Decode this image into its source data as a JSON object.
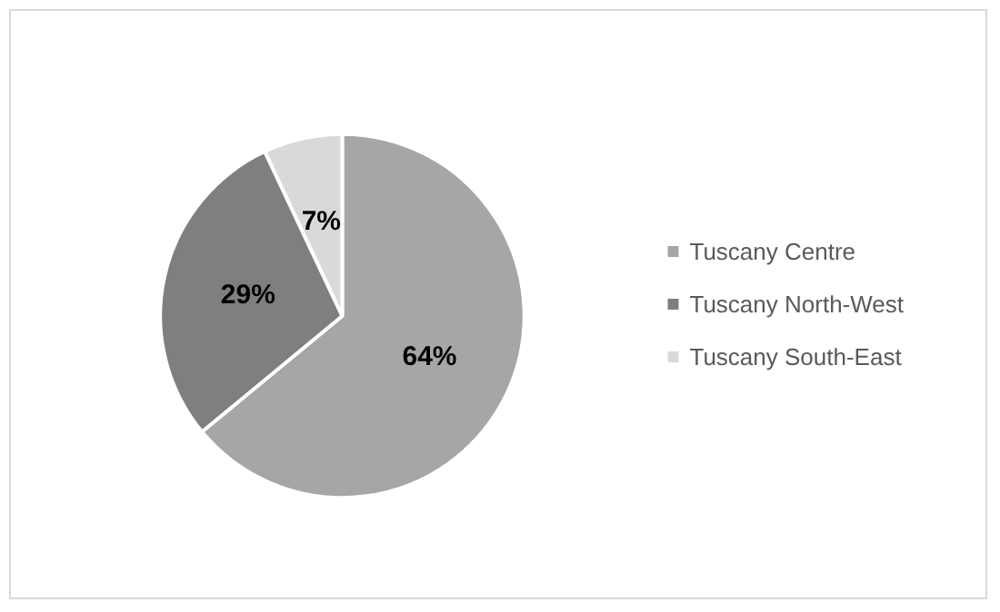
{
  "chart_data": {
    "type": "pie",
    "categories": [
      "Tuscany Centre",
      "Tuscany North-West",
      "Tuscany South-East"
    ],
    "values": [
      64,
      29,
      7
    ],
    "colors": [
      "#a6a6a6",
      "#7f7f7f",
      "#d9d9d9"
    ],
    "value_labels": [
      "64%",
      "29%",
      "7%"
    ],
    "legend": "right"
  }
}
